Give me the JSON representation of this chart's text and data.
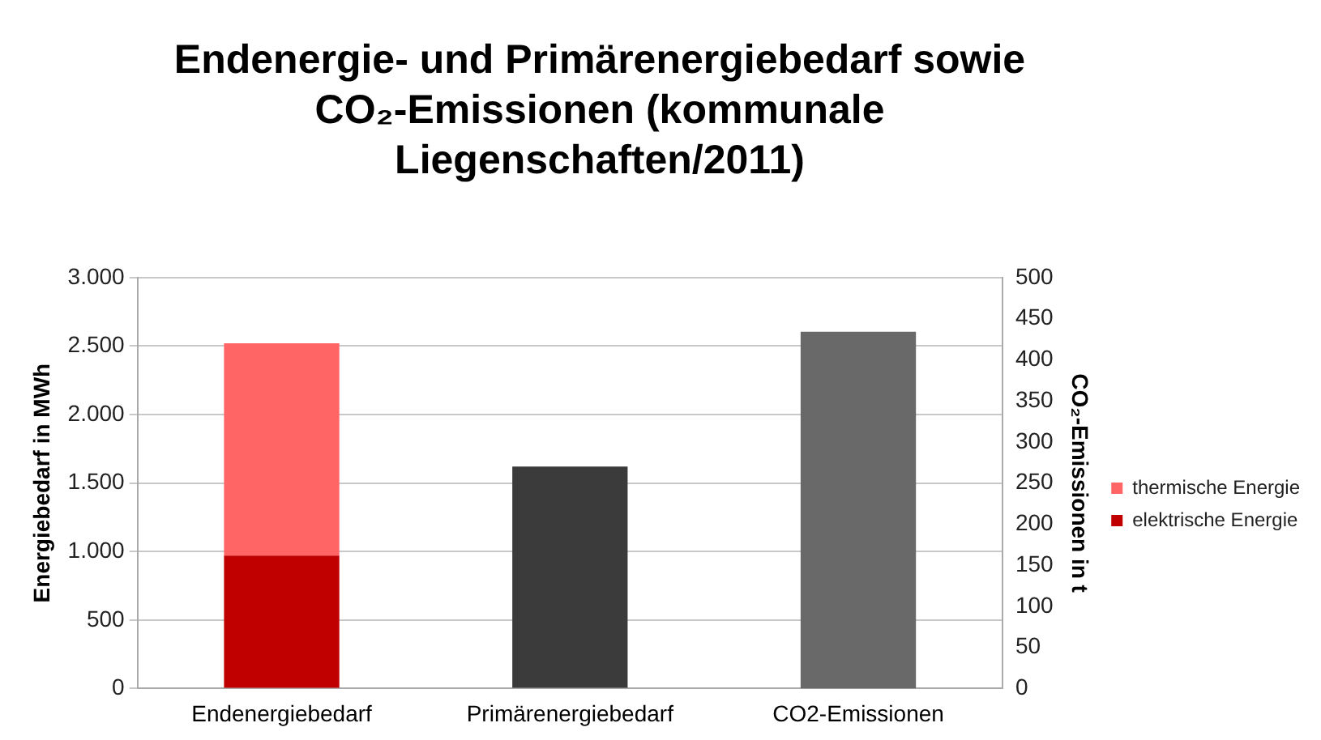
{
  "chart_data": {
    "type": "bar",
    "title": "Endenergie- und Primärenergiebedarf sowie CO₂-Emissionen (kommunale Liegenschaften/2011)",
    "ylabel": "Energiebedarf in MWh",
    "y2label": "CO₂-Emissionen in t",
    "categories": [
      "Endenergiebedarf",
      "Primärenergiebedarf",
      "CO2-Emissionen"
    ],
    "stacked": true,
    "series": [
      {
        "name": "elektrische Energie",
        "color": "#c00000",
        "values": [
          970,
          null,
          null
        ]
      },
      {
        "name": "thermische Energie",
        "color": "#ff6565",
        "values": [
          1550,
          null,
          null
        ]
      },
      {
        "color": "#3b3b3b",
        "values": [
          null,
          1620,
          null
        ]
      },
      {
        "color": "#696969",
        "axis": "y2",
        "values": [
          null,
          null,
          434
        ]
      }
    ],
    "ylim": [
      0,
      3000
    ],
    "yticks": [
      {
        "value": 0,
        "label": "0"
      },
      {
        "value": 500,
        "label": "500"
      },
      {
        "value": 1000,
        "label": "1.000"
      },
      {
        "value": 1500,
        "label": "1.500"
      },
      {
        "value": 2000,
        "label": "2.000"
      },
      {
        "value": 2500,
        "label": "2.500"
      },
      {
        "value": 3000,
        "label": "3.000"
      }
    ],
    "y2lim": [
      0,
      500
    ],
    "y2ticks": [
      0,
      50,
      100,
      150,
      200,
      250,
      300,
      350,
      400,
      450,
      500
    ],
    "grid": "y",
    "legend": "right"
  }
}
